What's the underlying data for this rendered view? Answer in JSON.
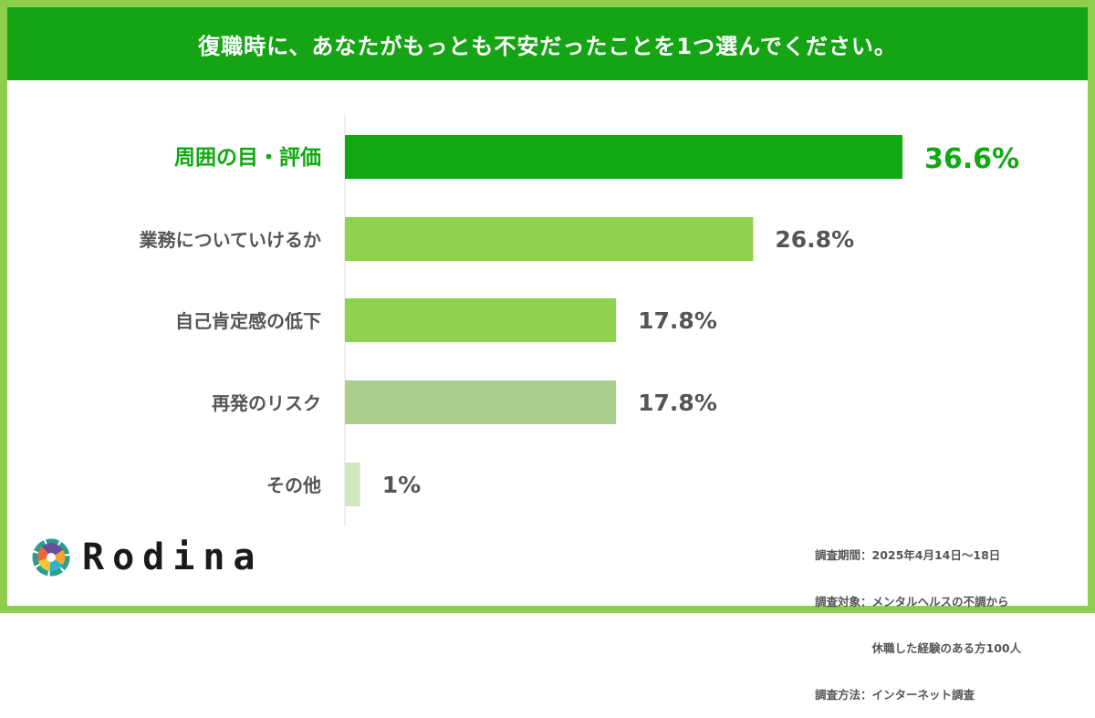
{
  "chart_data": {
    "type": "bar",
    "orientation": "horizontal",
    "title": "復職時に、あなたがもっとも不安だったことを1つ選んでください。",
    "categories": [
      "周囲の目・評価",
      "業務についていけるか",
      "自己肯定感の低下",
      "再発のリスク",
      "その他"
    ],
    "values": [
      36.6,
      26.8,
      17.8,
      17.8,
      1
    ],
    "value_labels": [
      "36.6%",
      "26.8%",
      "17.8%",
      "17.8%",
      "1%"
    ],
    "colors": [
      "#12a812",
      "#8fd24f",
      "#8fd24f",
      "#a8d08c",
      "#cfe8c0"
    ],
    "xlim": [
      0,
      40
    ],
    "grid": false,
    "xlabel": "",
    "ylabel": ""
  },
  "notes": [
    "調査期間：2025年4月14日～18日",
    "調査対象：メンタルヘルスの不調から",
    "　　　　　休職した経験のある方100人",
    "調査方法：インターネット調査"
  ],
  "logo": {
    "text": "Rodina"
  }
}
